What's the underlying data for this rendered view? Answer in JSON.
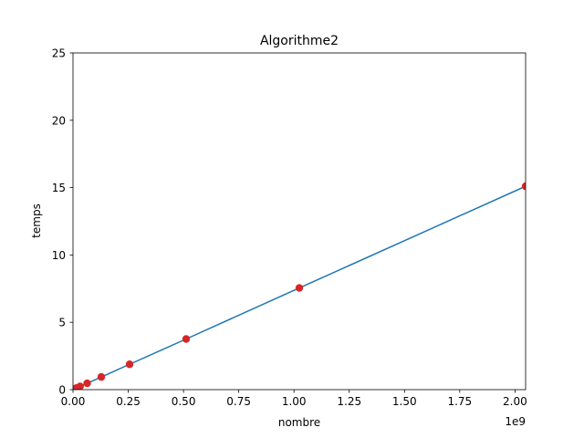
{
  "chart_data": {
    "type": "line",
    "title": "Algorithme2",
    "xlabel": "nombre",
    "ylabel": "temps",
    "x_offset_text": "1e9",
    "xlim": [
      0,
      2048000000
    ],
    "ylim": [
      0,
      25
    ],
    "x_ticks": [
      0,
      250000000,
      500000000,
      750000000,
      1000000000,
      1250000000,
      1500000000,
      1750000000,
      2000000000
    ],
    "x_tick_labels": [
      "0.00",
      "0.25",
      "0.50",
      "0.75",
      "1.00",
      "1.25",
      "1.50",
      "1.75",
      "2.00"
    ],
    "y_ticks": [
      0,
      5,
      10,
      15,
      20,
      25
    ],
    "y_tick_labels": [
      "0",
      "5",
      "10",
      "15",
      "20",
      "25"
    ],
    "grid": false,
    "series": [
      {
        "x": [
          1000000,
          2000000,
          4000000,
          8000000,
          16000000,
          32000000,
          64000000,
          128000000,
          256000000,
          512000000,
          1024000000,
          2048000000
        ],
        "y": [
          0.0,
          0.01,
          0.03,
          0.06,
          0.12,
          0.24,
          0.47,
          0.94,
          1.88,
          3.76,
          7.55,
          15.1
        ],
        "line_color": "#1f77b4",
        "marker_color": "#d62728"
      }
    ]
  }
}
